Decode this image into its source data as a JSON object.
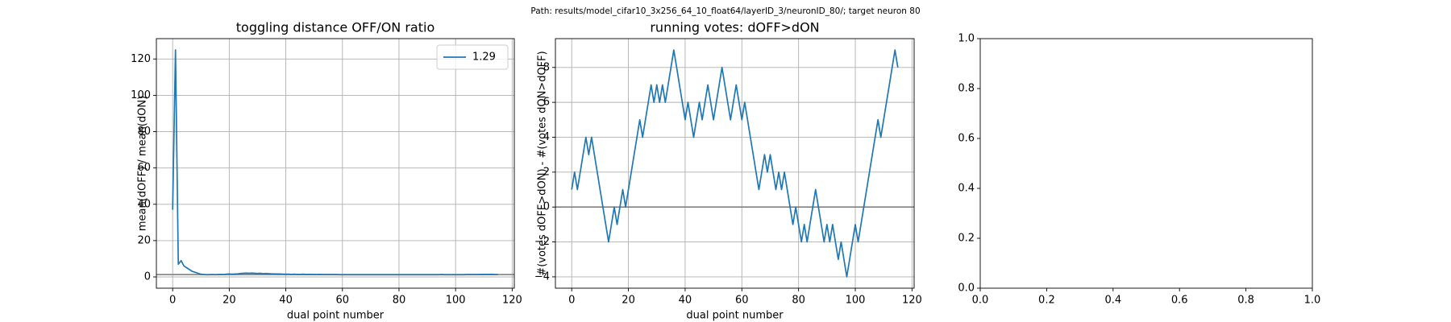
{
  "suptitle": "Path: results/model_cifar10_3x256_64_10_float64/layerID_3/neuronID_80/; target neuron 80",
  "chart_data": [
    {
      "type": "line",
      "title": "toggling distance OFF/ON ratio",
      "x_label": "dual point number",
      "y_label": "mean(dOFF) / mean(dON)",
      "xlim": [
        -5.75,
        120.75
      ],
      "ylim": [
        -6.2,
        131.2
      ],
      "xticks": [
        0,
        20,
        40,
        60,
        80,
        100,
        120
      ],
      "yticks": [
        0,
        20,
        40,
        60,
        80,
        100,
        120
      ],
      "grid": true,
      "legend": "upper right",
      "hline": 1.29,
      "hline_color": "#808080",
      "x": [
        0,
        1,
        2,
        3,
        4,
        5,
        6,
        7,
        8,
        9,
        10,
        11,
        12,
        13,
        14,
        15,
        16,
        17,
        18,
        19,
        20,
        21,
        22,
        23,
        24,
        25,
        26,
        27,
        28,
        29,
        30,
        31,
        32,
        33,
        34,
        35,
        36,
        37,
        38,
        39,
        40,
        41,
        42,
        43,
        44,
        45,
        46,
        47,
        48,
        49,
        50,
        51,
        52,
        53,
        54,
        55,
        56,
        57,
        58,
        59,
        60,
        61,
        62,
        63,
        64,
        65,
        66,
        67,
        68,
        69,
        70,
        71,
        72,
        73,
        74,
        75,
        76,
        77,
        78,
        79,
        80,
        81,
        82,
        83,
        84,
        85,
        86,
        87,
        88,
        89,
        90,
        91,
        92,
        93,
        94,
        95,
        96,
        97,
        98,
        99,
        100,
        101,
        102,
        103,
        104,
        105,
        106,
        107,
        108,
        109,
        110,
        111,
        112,
        113,
        114,
        115
      ],
      "series": [
        {
          "name": "1.29",
          "color": "#1f77b4",
          "values": [
            37,
            125,
            7,
            9,
            6,
            5,
            4,
            3,
            2.5,
            2,
            1.5,
            1.3,
            1.2,
            1.2,
            1.3,
            1.2,
            1.3,
            1.4,
            1.3,
            1.5,
            1.6,
            1.5,
            1.6,
            1.7,
            1.9,
            2,
            2.1,
            2,
            2.1,
            2,
            1.9,
            2,
            1.8,
            1.9,
            1.8,
            1.7,
            1.7,
            1.6,
            1.6,
            1.5,
            1.5,
            1.5,
            1.4,
            1.5,
            1.4,
            1.4,
            1.5,
            1.4,
            1.4,
            1.4,
            1.4,
            1.3,
            1.4,
            1.3,
            1.3,
            1.3,
            1.3,
            1.3,
            1.3,
            1.2,
            1.2,
            1.2,
            1.2,
            1.2,
            1.2,
            1.2,
            1.2,
            1.2,
            1.2,
            1.2,
            1.2,
            1.2,
            1.2,
            1.2,
            1.2,
            1.2,
            1.2,
            1.2,
            1.2,
            1.2,
            1.2,
            1.2,
            1.2,
            1.2,
            1.2,
            1.2,
            1.2,
            1.2,
            1.2,
            1.2,
            1.2,
            1.2,
            1.2,
            1.2,
            1.2,
            1.3,
            1.2,
            1.2,
            1.2,
            1.2,
            1.2,
            1.2,
            1.2,
            1.2,
            1.3,
            1.3,
            1.3,
            1.3,
            1.3,
            1.4,
            1.4,
            1.4,
            1.4,
            1.4,
            1.3,
            1.3
          ]
        }
      ]
    },
    {
      "type": "line",
      "title": "running votes: dOFF>dON",
      "x_label": "dual point number",
      "y_label": "#(votes dOFF>dON) - #(votes dON>dOFF)",
      "xlim": [
        -5.75,
        120.75
      ],
      "ylim": [
        -4.65,
        9.65
      ],
      "xticks": [
        0,
        20,
        40,
        60,
        80,
        100,
        120
      ],
      "yticks": [
        {
          "value": -4,
          "label": "−4"
        },
        {
          "value": -2,
          "label": "−2"
        },
        0,
        2,
        4,
        6,
        8
      ],
      "grid": true,
      "hline": 0,
      "hline_color": "#808080",
      "x": [
        0,
        1,
        2,
        3,
        4,
        5,
        6,
        7,
        8,
        9,
        10,
        11,
        12,
        13,
        14,
        15,
        16,
        17,
        18,
        19,
        20,
        21,
        22,
        23,
        24,
        25,
        26,
        27,
        28,
        29,
        30,
        31,
        32,
        33,
        34,
        35,
        36,
        37,
        38,
        39,
        40,
        41,
        42,
        43,
        44,
        45,
        46,
        47,
        48,
        49,
        50,
        51,
        52,
        53,
        54,
        55,
        56,
        57,
        58,
        59,
        60,
        61,
        62,
        63,
        64,
        65,
        66,
        67,
        68,
        69,
        70,
        71,
        72,
        73,
        74,
        75,
        76,
        77,
        78,
        79,
        80,
        81,
        82,
        83,
        84,
        85,
        86,
        87,
        88,
        89,
        90,
        91,
        92,
        93,
        94,
        95,
        96,
        97,
        98,
        99,
        100,
        101,
        102,
        103,
        104,
        105,
        106,
        107,
        108,
        109,
        110,
        111,
        112,
        113,
        114,
        115
      ],
      "series": [
        {
          "color": "#1f77b4",
          "values": [
            1,
            2,
            1,
            2,
            3,
            4,
            3,
            4,
            3,
            2,
            1,
            0,
            -1,
            -2,
            -1,
            0,
            -1,
            0,
            1,
            0,
            1,
            2,
            3,
            4,
            5,
            4,
            5,
            6,
            7,
            6,
            7,
            6,
            7,
            6,
            7,
            8,
            9,
            8,
            7,
            6,
            5,
            6,
            5,
            4,
            5,
            6,
            5,
            6,
            7,
            6,
            5,
            6,
            7,
            8,
            7,
            6,
            5,
            6,
            7,
            6,
            5,
            6,
            5,
            4,
            3,
            2,
            1,
            2,
            3,
            2,
            3,
            2,
            1,
            2,
            1,
            2,
            1,
            0,
            -1,
            0,
            -1,
            -2,
            -1,
            -2,
            -1,
            0,
            1,
            0,
            -1,
            -2,
            -1,
            -2,
            -1,
            -2,
            -3,
            -2,
            -3,
            -4,
            -3,
            -2,
            -1,
            -2,
            -1,
            0,
            1,
            2,
            3,
            4,
            5,
            4,
            5,
            6,
            7,
            8,
            9,
            8
          ]
        }
      ]
    },
    {
      "type": "line",
      "xlim": [
        0,
        1
      ],
      "ylim": [
        0,
        1
      ],
      "grid": false,
      "xticks": [
        {
          "value": 0,
          "label": "0.0"
        },
        {
          "value": 0.2,
          "label": "0.2"
        },
        {
          "value": 0.4,
          "label": "0.4"
        },
        {
          "value": 0.6,
          "label": "0.6"
        },
        {
          "value": 0.8,
          "label": "0.8"
        },
        {
          "value": 1,
          "label": "1.0"
        }
      ],
      "yticks": [
        {
          "value": 0,
          "label": "0.0"
        },
        {
          "value": 0.2,
          "label": "0.2"
        },
        {
          "value": 0.4,
          "label": "0.4"
        },
        {
          "value": 0.6,
          "label": "0.6"
        },
        {
          "value": 0.8,
          "label": "0.8"
        },
        {
          "value": 1,
          "label": "1.0"
        }
      ],
      "series": []
    }
  ]
}
